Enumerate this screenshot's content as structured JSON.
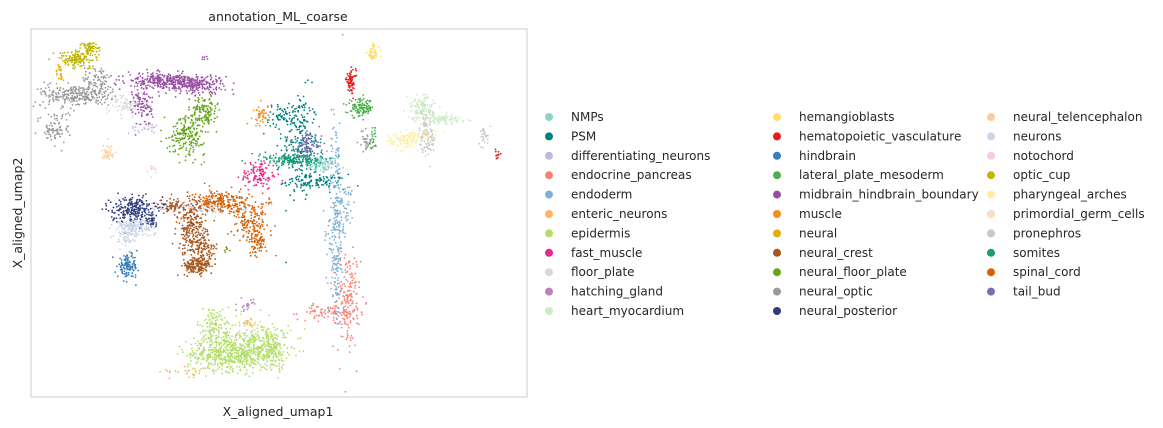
{
  "chart_data": {
    "type": "scatter",
    "title": "annotation_ML_coarse",
    "xlabel": "X_aligned_umap1",
    "ylabel": "X_aligned_umap2",
    "xlim": [
      0,
      100
    ],
    "ylim": [
      0,
      100
    ],
    "grid": false,
    "ticks": false,
    "legend_placement": "right, 3 columns",
    "series": [
      {
        "name": "NMPs",
        "color": "#8dd3c7",
        "clusters": [
          {
            "cx": 58.5,
            "cy": 63.2,
            "sx": 1.6,
            "sy": 1.2,
            "n": 80
          }
        ]
      },
      {
        "name": "PSM",
        "color": "#007f7f",
        "clusters": [
          {
            "cx": 54.2,
            "cy": 68.0,
            "sx": 1.8,
            "sy": 7.5,
            "n": 220
          },
          {
            "cx": 51.5,
            "cy": 76.5,
            "sx": 2.0,
            "sy": 1.6,
            "n": 80
          },
          {
            "cx": 57.5,
            "cy": 58.5,
            "sx": 3.0,
            "sy": 1.0,
            "n": 100
          }
        ]
      },
      {
        "name": "differentiating_neurons",
        "color": "#bebada",
        "clusters": [
          {
            "cx": 33.5,
            "cy": 51.5,
            "sx": 5.0,
            "sy": 0.7,
            "n": 80
          },
          {
            "cx": 22.8,
            "cy": 73.2,
            "sx": 1.5,
            "sy": 0.8,
            "n": 25
          }
        ]
      },
      {
        "name": "endocrine_pancreas",
        "color": "#fa8072",
        "clusters": [
          {
            "cx": 64.0,
            "cy": 26.5,
            "sx": 1.2,
            "sy": 6.5,
            "n": 160
          },
          {
            "cx": 60.0,
            "cy": 23.0,
            "sx": 3.0,
            "sy": 1.0,
            "n": 80
          }
        ]
      },
      {
        "name": "endoderm",
        "color": "#80b1d3",
        "clusters": [
          {
            "cx": 61.5,
            "cy": 47.0,
            "sx": 0.8,
            "sy": 15.0,
            "n": 280
          },
          {
            "cx": 63.5,
            "cy": 52.0,
            "sx": 1.0,
            "sy": 3.0,
            "n": 40
          }
        ]
      },
      {
        "name": "enteric_neurons",
        "color": "#fdb462",
        "clusters": [
          {
            "cx": 44.0,
            "cy": 20.5,
            "sx": 0.6,
            "sy": 0.8,
            "n": 15
          },
          {
            "cx": 32.0,
            "cy": 7.0,
            "sx": 2.0,
            "sy": 0.8,
            "n": 20
          }
        ]
      },
      {
        "name": "epidermis",
        "color": "#b3de69",
        "clusters": [
          {
            "cx": 40.5,
            "cy": 11.5,
            "sx": 4.5,
            "sy": 2.2,
            "n": 520
          },
          {
            "cx": 46.0,
            "cy": 15.0,
            "sx": 3.2,
            "sy": 3.0,
            "n": 250
          },
          {
            "cx": 37.0,
            "cy": 18.5,
            "sx": 1.8,
            "sy": 3.0,
            "n": 150
          },
          {
            "cx": 49.0,
            "cy": 12.0,
            "sx": 1.0,
            "sy": 2.0,
            "n": 80
          }
        ]
      },
      {
        "name": "fast_muscle",
        "color": "#e7298a",
        "clusters": [
          {
            "cx": 46.0,
            "cy": 60.5,
            "sx": 1.8,
            "sy": 2.0,
            "n": 110
          }
        ]
      },
      {
        "name": "floor_plate",
        "color": "#d9d9d9",
        "clusters": [
          {
            "cx": 19.5,
            "cy": 79.5,
            "sx": 2.0,
            "sy": 1.5,
            "n": 100
          },
          {
            "cx": 36.5,
            "cy": 52.0,
            "sx": 1.8,
            "sy": 1.2,
            "n": 70
          }
        ]
      },
      {
        "name": "hatching_gland",
        "color": "#bc80bd",
        "clusters": [
          {
            "cx": 43.5,
            "cy": 25.0,
            "sx": 0.7,
            "sy": 0.8,
            "n": 20
          }
        ]
      },
      {
        "name": "heart_myocardium",
        "color": "#ccebc5",
        "clusters": [
          {
            "cx": 78.5,
            "cy": 78.5,
            "sx": 1.3,
            "sy": 1.8,
            "n": 110
          },
          {
            "cx": 83.0,
            "cy": 75.5,
            "sx": 2.5,
            "sy": 0.7,
            "n": 90
          }
        ]
      },
      {
        "name": "hemangioblasts",
        "color": "#ffe066",
        "clusters": [
          {
            "cx": 69.0,
            "cy": 93.5,
            "sx": 0.6,
            "sy": 1.3,
            "n": 55
          }
        ]
      },
      {
        "name": "hematopoietic_vasculature",
        "color": "#e41a1c",
        "clusters": [
          {
            "cx": 64.5,
            "cy": 85.8,
            "sx": 0.5,
            "sy": 1.5,
            "n": 70
          },
          {
            "cx": 94.0,
            "cy": 66.0,
            "sx": 0.3,
            "sy": 0.6,
            "n": 12
          }
        ]
      },
      {
        "name": "hindbrain",
        "color": "#377eb8",
        "clusters": [
          {
            "cx": 19.5,
            "cy": 35.5,
            "sx": 1.0,
            "sy": 1.5,
            "n": 120
          }
        ]
      },
      {
        "name": "lateral_plate_mesoderm",
        "color": "#4daf4a",
        "clusters": [
          {
            "cx": 66.5,
            "cy": 78.5,
            "sx": 1.3,
            "sy": 1.2,
            "n": 110
          },
          {
            "cx": 69.0,
            "cy": 69.5,
            "sx": 0.4,
            "sy": 2.0,
            "n": 25
          }
        ]
      },
      {
        "name": "midbrain_hindbrain_boundary",
        "color": "#984ea3",
        "clusters": [
          {
            "cx": 26.5,
            "cy": 86.0,
            "sx": 3.5,
            "sy": 1.0,
            "n": 250
          },
          {
            "cx": 33.0,
            "cy": 85.0,
            "sx": 3.0,
            "sy": 1.3,
            "n": 230
          },
          {
            "cx": 22.5,
            "cy": 79.5,
            "sx": 1.0,
            "sy": 3.0,
            "n": 90
          },
          {
            "cx": 35.0,
            "cy": 92.0,
            "sx": 0.3,
            "sy": 0.6,
            "n": 6
          }
        ]
      },
      {
        "name": "muscle",
        "color": "#f28e1c",
        "clusters": [
          {
            "cx": 46.5,
            "cy": 76.5,
            "sx": 0.8,
            "sy": 1.5,
            "n": 45
          }
        ]
      },
      {
        "name": "neural",
        "color": "#e6ab02",
        "clusters": [
          {
            "cx": 5.8,
            "cy": 87.5,
            "sx": 0.4,
            "sy": 1.5,
            "n": 25
          }
        ]
      },
      {
        "name": "neural_crest",
        "color": "#a6561d",
        "clusters": [
          {
            "cx": 32.5,
            "cy": 46.0,
            "sx": 1.5,
            "sy": 3.5,
            "n": 220
          },
          {
            "cx": 34.5,
            "cy": 40.0,
            "sx": 1.5,
            "sy": 2.0,
            "n": 110
          },
          {
            "cx": 33.5,
            "cy": 35.5,
            "sx": 1.5,
            "sy": 1.2,
            "n": 150
          },
          {
            "cx": 28.5,
            "cy": 52.0,
            "sx": 1.2,
            "sy": 1.0,
            "n": 60
          }
        ]
      },
      {
        "name": "neural_floor_plate",
        "color": "#66a61e",
        "clusters": [
          {
            "cx": 31.5,
            "cy": 71.5,
            "sx": 1.8,
            "sy": 2.8,
            "n": 200
          },
          {
            "cx": 35.0,
            "cy": 77.5,
            "sx": 1.2,
            "sy": 2.0,
            "n": 120
          },
          {
            "cx": 39.5,
            "cy": 40.0,
            "sx": 0.3,
            "sy": 0.3,
            "n": 6
          }
        ]
      },
      {
        "name": "neural_optic",
        "color": "#999999",
        "clusters": [
          {
            "cx": 9.0,
            "cy": 82.0,
            "sx": 3.5,
            "sy": 1.5,
            "n": 260
          },
          {
            "cx": 5.0,
            "cy": 73.0,
            "sx": 1.5,
            "sy": 2.5,
            "n": 90
          },
          {
            "cx": 13.5,
            "cy": 85.5,
            "sx": 1.5,
            "sy": 2.5,
            "n": 80
          },
          {
            "cx": 67.5,
            "cy": 69.5,
            "sx": 0.6,
            "sy": 1.5,
            "n": 30
          }
        ]
      },
      {
        "name": "neural_posterior",
        "color": "#2e3c7e",
        "clusters": [
          {
            "cx": 20.5,
            "cy": 51.0,
            "sx": 2.2,
            "sy": 1.8,
            "n": 230
          },
          {
            "cx": 24.0,
            "cy": 48.0,
            "sx": 0.8,
            "sy": 0.8,
            "n": 30
          }
        ]
      },
      {
        "name": "neural_telencephalon",
        "color": "#fdcc9e",
        "clusters": [
          {
            "cx": 15.5,
            "cy": 66.5,
            "sx": 0.6,
            "sy": 1.2,
            "n": 40
          }
        ]
      },
      {
        "name": "neurons",
        "color": "#cbd5e8",
        "clusters": [
          {
            "cx": 20.5,
            "cy": 46.0,
            "sx": 2.0,
            "sy": 1.2,
            "n": 160
          },
          {
            "cx": 19.0,
            "cy": 43.0,
            "sx": 1.0,
            "sy": 1.0,
            "n": 40
          }
        ]
      },
      {
        "name": "notochord",
        "color": "#f4cae4",
        "clusters": [
          {
            "cx": 24.5,
            "cy": 62.0,
            "sx": 0.5,
            "sy": 0.8,
            "n": 10
          }
        ]
      },
      {
        "name": "optic_cup",
        "color": "#c0b500",
        "clusters": [
          {
            "cx": 9.5,
            "cy": 92.0,
            "sx": 2.0,
            "sy": 1.2,
            "n": 160
          },
          {
            "cx": 12.0,
            "cy": 95.0,
            "sx": 1.0,
            "sy": 0.6,
            "n": 50
          }
        ]
      },
      {
        "name": "pharyngeal_arches",
        "color": "#ffeda0",
        "clusters": [
          {
            "cx": 75.0,
            "cy": 69.5,
            "sx": 1.5,
            "sy": 1.3,
            "n": 90
          },
          {
            "cx": 78.5,
            "cy": 71.0,
            "sx": 2.0,
            "sy": 0.6,
            "n": 40
          }
        ]
      },
      {
        "name": "primordial_germ_cells",
        "color": "#f9dcc4",
        "clusters": [
          {
            "cx": 30.0,
            "cy": 47.5,
            "sx": 0.4,
            "sy": 0.4,
            "n": 8
          }
        ]
      },
      {
        "name": "pronephros",
        "color": "#c8c8c8",
        "clusters": [
          {
            "cx": 80.0,
            "cy": 71.5,
            "sx": 0.8,
            "sy": 4.0,
            "n": 90
          },
          {
            "cx": 91.5,
            "cy": 71.0,
            "sx": 0.5,
            "sy": 1.2,
            "n": 25
          }
        ]
      },
      {
        "name": "somites",
        "color": "#1b9e77",
        "clusters": [
          {
            "cx": 53.0,
            "cy": 64.5,
            "sx": 3.5,
            "sy": 0.9,
            "n": 160
          }
        ]
      },
      {
        "name": "spinal_cord",
        "color": "#d95f02",
        "clusters": [
          {
            "cx": 38.5,
            "cy": 53.0,
            "sx": 3.0,
            "sy": 1.5,
            "n": 220
          },
          {
            "cx": 44.5,
            "cy": 47.0,
            "sx": 1.8,
            "sy": 3.0,
            "n": 170
          },
          {
            "cx": 45.5,
            "cy": 41.5,
            "sx": 0.9,
            "sy": 1.5,
            "n": 50
          }
        ]
      },
      {
        "name": "tail_bud",
        "color": "#7570b3",
        "clusters": [
          {
            "cx": 56.0,
            "cy": 68.5,
            "sx": 1.3,
            "sy": 1.8,
            "n": 90
          }
        ]
      }
    ]
  }
}
